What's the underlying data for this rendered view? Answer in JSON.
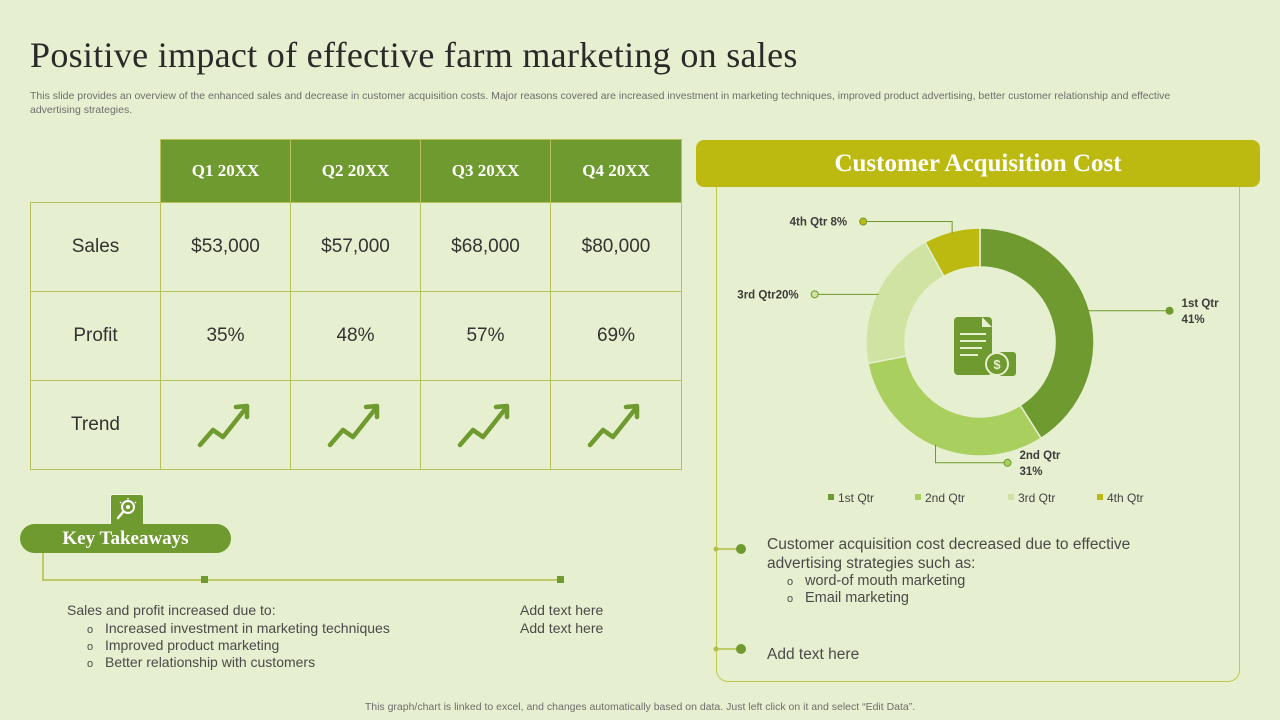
{
  "title": "Positive impact of effective farm marketing on sales",
  "subtitle": "This slide provides an overview of the enhanced sales and decrease in customer acquisition costs. Major reasons covered are increased investment in marketing techniques, improved product advertising, better customer relationship and effective advertising strategies.",
  "table": {
    "headers": [
      "Q1 20XX",
      "Q2 20XX",
      "Q3 20XX",
      "Q4 20XX"
    ],
    "rows": [
      {
        "label": "Sales",
        "values": [
          "$53,000",
          "$57,000",
          "$68,000",
          "$80,000"
        ]
      },
      {
        "label": "Profit",
        "values": [
          "35%",
          "48%",
          "57%",
          "69%"
        ]
      },
      {
        "label": "Trend",
        "icon": "trend-up-arrow-icon"
      }
    ]
  },
  "takeaways": {
    "heading": "Key Takeaways",
    "icon": "lightbulb-search-icon",
    "intro": "Sales and profit increased due to:",
    "bullets": [
      "Increased investment in marketing techniques",
      "Improved product marketing",
      "Better relationship with customers"
    ],
    "side_lines": [
      "Add text here",
      "Add text here"
    ]
  },
  "cac": {
    "heading": "Customer Acquisition Cost",
    "center_icon": "invoice-dollar-icon",
    "point1": {
      "text": "Customer acquisition cost decreased due to effective advertising strategies such as:",
      "bullets": [
        "word-of mouth marketing",
        "Email marketing"
      ]
    },
    "point2": "Add text here"
  },
  "chart_data": {
    "type": "pie",
    "donut": true,
    "categories": [
      "1st Qtr",
      "2nd Qtr",
      "3rd Qtr",
      "4th Qtr"
    ],
    "values": [
      41,
      31,
      20,
      8
    ],
    "data_labels": [
      "1st Qtr 41%",
      "2nd Qtr 31%",
      "3rd Qtr20%",
      "4th Qtr 8%"
    ],
    "colors": [
      "#6f9a2f",
      "#a9cf5e",
      "#cfe3a2",
      "#bcba10"
    ],
    "legend": "bottom"
  },
  "footer": "This graph/chart is linked to excel, and changes automatically based on data. Just left click on it and select “Edit Data”."
}
